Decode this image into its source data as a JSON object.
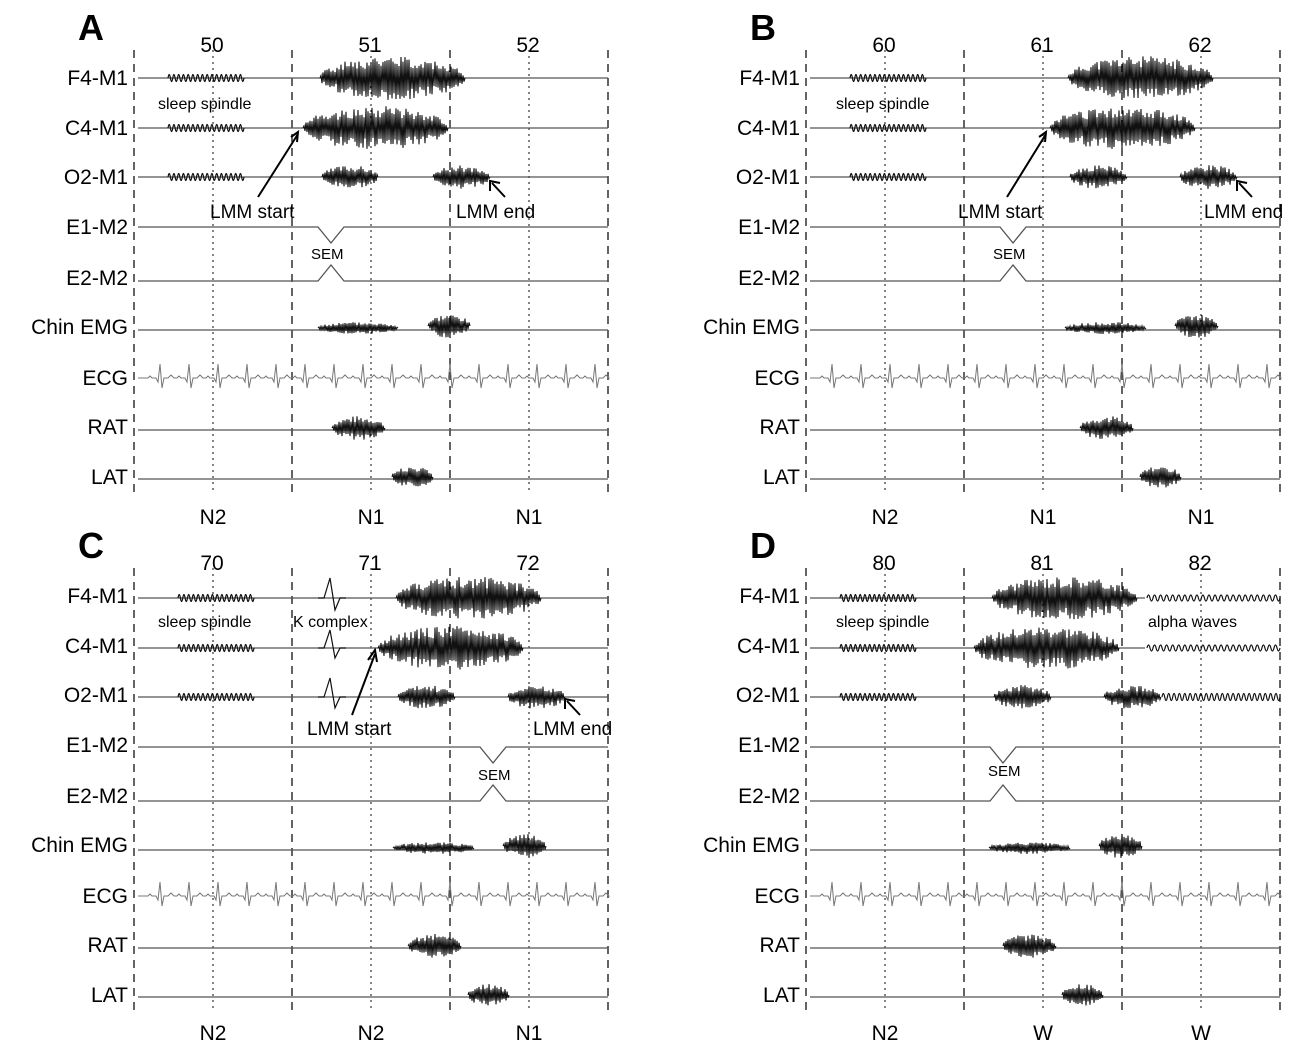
{
  "channels": [
    "F4-M1",
    "C4-M1",
    "O2-M1",
    "E1-M2",
    "E2-M2",
    "Chin EMG",
    "ECG",
    "RAT",
    "LAT"
  ],
  "panels": [
    {
      "letter": "A",
      "epochs": [
        "50",
        "51",
        "52"
      ],
      "stages": [
        "N2",
        "N1",
        "N1"
      ],
      "annotations": {
        "spindle": "sleep spindle",
        "lmm_start": "LMM start",
        "lmm_end": "LMM end",
        "sem": "SEM"
      }
    },
    {
      "letter": "B",
      "epochs": [
        "60",
        "61",
        "62"
      ],
      "stages": [
        "N2",
        "N1",
        "N1"
      ],
      "annotations": {
        "spindle": "sleep spindle",
        "lmm_start": "LMM start",
        "lmm_end": "LMM end",
        "sem": "SEM"
      }
    },
    {
      "letter": "C",
      "epochs": [
        "70",
        "71",
        "72"
      ],
      "stages": [
        "N2",
        "N2",
        "N1"
      ],
      "annotations": {
        "spindle": "sleep spindle",
        "k_complex": "K complex",
        "lmm_start": "LMM start",
        "lmm_end": "LMM end",
        "sem": "SEM"
      }
    },
    {
      "letter": "D",
      "epochs": [
        "80",
        "81",
        "82"
      ],
      "stages": [
        "N2",
        "W",
        "W"
      ],
      "annotations": {
        "spindle": "sleep spindle",
        "alpha": "alpha waves",
        "sem": "SEM"
      }
    }
  ]
}
